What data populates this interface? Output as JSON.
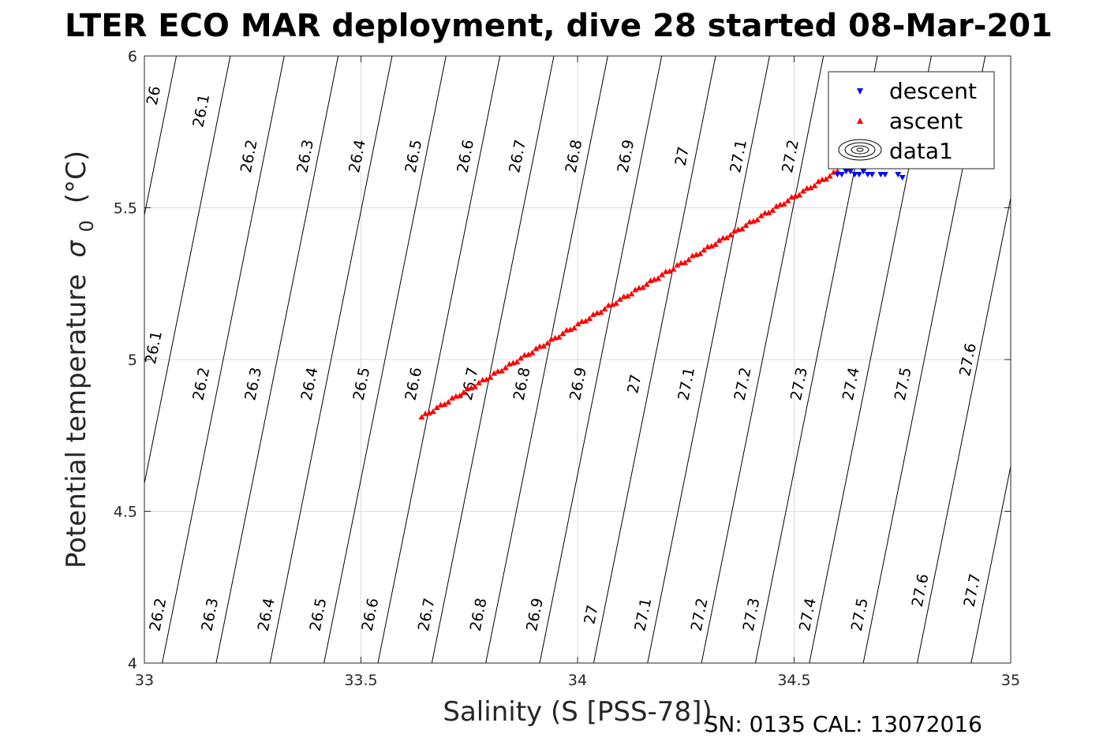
{
  "chart_data": {
    "type": "scatter",
    "title": "LTER ECO MAR deployment, dive 28 started 08-Mar-201",
    "xlabel": "Salinity (S [PSS-78])",
    "ylabel_main": "Potential temperature",
    "ylabel_sigma": "σ",
    "ylabel_sub": "0",
    "ylabel_unit": "(°C)",
    "footer": "SN: 0135  CAL: 13072016",
    "xlim": [
      33,
      35
    ],
    "ylim": [
      4,
      6
    ],
    "xticks": [
      33,
      33.5,
      34,
      34.5,
      35
    ],
    "xtick_labels": [
      "33",
      "33.5",
      "34",
      "34.5",
      "35"
    ],
    "yticks": [
      4,
      4.5,
      5,
      5.5,
      6
    ],
    "ytick_labels": [
      "4",
      "4.5",
      "5",
      "5.5",
      "6"
    ],
    "grid": true,
    "legend_position": "top-right",
    "legend": [
      "descent",
      "ascent",
      "data1"
    ],
    "colors": {
      "descent": "#0000ff",
      "ascent": "#ff0000",
      "contour": "#000000",
      "grid": "#dcdcdc"
    },
    "density_contours": {
      "levels": [
        26,
        26.1,
        26.2,
        26.3,
        26.4,
        26.5,
        26.6,
        26.7,
        26.8,
        26.9,
        27,
        27.1,
        27.2,
        27.3,
        27.4,
        27.5,
        27.6,
        27.7
      ],
      "level_labels": [
        "26",
        "26.1",
        "26.2",
        "26.3",
        "26.4",
        "26.5",
        "26.6",
        "26.7",
        "26.8",
        "26.9",
        "27",
        "27.1",
        "27.2",
        "27.3",
        "27.4",
        "27.5",
        "27.6",
        "27.7"
      ],
      "labels_top": [
        {
          "level": 26,
          "label": "26",
          "s": 33.02,
          "t": 5.87
        },
        {
          "level": 26.1,
          "label": "26.1",
          "s": 33.13,
          "t": 5.82
        },
        {
          "level": 26.2,
          "label": "26.2",
          "s": 33.24,
          "t": 5.67
        },
        {
          "level": 26.3,
          "label": "26.3",
          "s": 33.37,
          "t": 5.67
        },
        {
          "level": 26.4,
          "label": "26.4",
          "s": 33.49,
          "t": 5.67
        },
        {
          "level": 26.5,
          "label": "26.5",
          "s": 33.62,
          "t": 5.67
        },
        {
          "level": 26.6,
          "label": "26.6",
          "s": 33.74,
          "t": 5.67
        },
        {
          "level": 26.7,
          "label": "26.7",
          "s": 33.86,
          "t": 5.67
        },
        {
          "level": 26.8,
          "label": "26.8",
          "s": 33.99,
          "t": 5.67
        },
        {
          "level": 26.9,
          "label": "26.9",
          "s": 34.11,
          "t": 5.67
        },
        {
          "level": 27,
          "label": "27",
          "s": 34.24,
          "t": 5.67
        },
        {
          "level": 27.1,
          "label": "27.1",
          "s": 34.37,
          "t": 5.67
        },
        {
          "level": 27.2,
          "label": "27.2",
          "s": 34.49,
          "t": 5.67
        }
      ],
      "labels_mid": [
        {
          "level": 26.1,
          "label": "26.1",
          "s": 33.02,
          "t": 5.04
        },
        {
          "level": 26.2,
          "label": "26.2",
          "s": 33.13,
          "t": 4.92
        },
        {
          "level": 26.3,
          "label": "26.3",
          "s": 33.25,
          "t": 4.92
        },
        {
          "level": 26.4,
          "label": "26.4",
          "s": 33.38,
          "t": 4.92
        },
        {
          "level": 26.5,
          "label": "26.5",
          "s": 33.5,
          "t": 4.92
        },
        {
          "level": 26.6,
          "label": "26.6",
          "s": 33.62,
          "t": 4.92
        },
        {
          "level": 26.7,
          "label": "26.7",
          "s": 33.75,
          "t": 4.92
        },
        {
          "level": 26.8,
          "label": "26.8",
          "s": 33.87,
          "t": 4.92
        },
        {
          "level": 26.9,
          "label": "26.9",
          "s": 34.0,
          "t": 4.92
        },
        {
          "level": 27,
          "label": "27",
          "s": 34.13,
          "t": 4.92
        },
        {
          "level": 27.1,
          "label": "27.1",
          "s": 34.25,
          "t": 4.92
        },
        {
          "level": 27.2,
          "label": "27.2",
          "s": 34.38,
          "t": 4.92
        },
        {
          "level": 27.3,
          "label": "27.3",
          "s": 34.51,
          "t": 4.92
        },
        {
          "level": 27.4,
          "label": "27.4",
          "s": 34.63,
          "t": 4.92
        },
        {
          "level": 27.5,
          "label": "27.5",
          "s": 34.75,
          "t": 4.92
        },
        {
          "level": 27.6,
          "label": "27.6",
          "s": 34.9,
          "t": 5.0
        }
      ],
      "labels_bottom": [
        {
          "level": 26.2,
          "label": "26.2",
          "s": 33.03,
          "t": 4.16
        },
        {
          "level": 26.3,
          "label": "26.3",
          "s": 33.15,
          "t": 4.16
        },
        {
          "level": 26.4,
          "label": "26.4",
          "s": 33.28,
          "t": 4.16
        },
        {
          "level": 26.5,
          "label": "26.5",
          "s": 33.4,
          "t": 4.16
        },
        {
          "level": 26.6,
          "label": "26.6",
          "s": 33.52,
          "t": 4.16
        },
        {
          "level": 26.7,
          "label": "26.7",
          "s": 33.65,
          "t": 4.16
        },
        {
          "level": 26.8,
          "label": "26.8",
          "s": 33.77,
          "t": 4.16
        },
        {
          "level": 26.9,
          "label": "26.9",
          "s": 33.9,
          "t": 4.16
        },
        {
          "level": 27,
          "label": "27",
          "s": 34.03,
          "t": 4.16
        },
        {
          "level": 27.1,
          "label": "27.1",
          "s": 34.15,
          "t": 4.16
        },
        {
          "level": 27.2,
          "label": "27.2",
          "s": 34.28,
          "t": 4.16
        },
        {
          "level": 27.3,
          "label": "27.3",
          "s": 34.4,
          "t": 4.16
        },
        {
          "level": 27.4,
          "label": "27.4",
          "s": 34.53,
          "t": 4.16
        },
        {
          "level": 27.5,
          "label": "27.5",
          "s": 34.65,
          "t": 4.16
        },
        {
          "level": 27.6,
          "label": "27.6",
          "s": 34.79,
          "t": 4.24
        },
        {
          "level": 27.7,
          "label": "27.7",
          "s": 34.91,
          "t": 4.24
        }
      ]
    },
    "series": [
      {
        "name": "descent",
        "marker": "triangle-down",
        "points": [
          [
            34.6,
            5.61
          ],
          [
            34.61,
            5.61
          ],
          [
            34.62,
            5.62
          ],
          [
            34.63,
            5.62
          ],
          [
            34.64,
            5.61
          ],
          [
            34.65,
            5.61
          ],
          [
            34.66,
            5.62
          ],
          [
            34.67,
            5.61
          ],
          [
            34.68,
            5.61
          ],
          [
            34.7,
            5.61
          ],
          [
            34.71,
            5.61
          ],
          [
            34.74,
            5.61
          ],
          [
            34.75,
            5.6
          ]
        ]
      },
      {
        "name": "ascent",
        "marker": "triangle-up",
        "start": [
          33.64,
          4.81
        ],
        "end": [
          34.6,
          5.62
        ],
        "count": 110
      }
    ]
  }
}
